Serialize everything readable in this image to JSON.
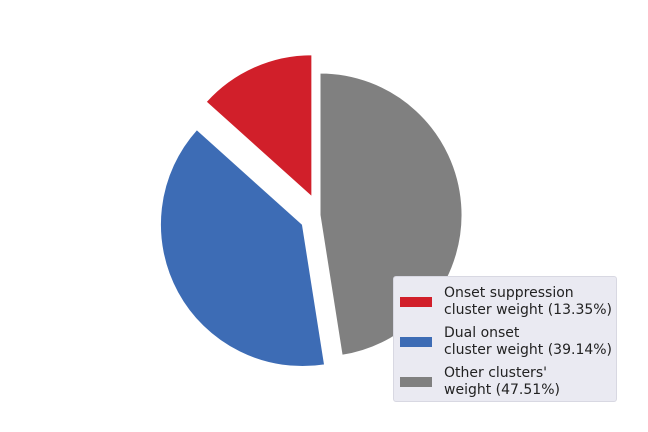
{
  "chart_data": {
    "type": "pie",
    "title": "",
    "slices": [
      {
        "label_lines": [
          "Onset suppression",
          "cluster weight (13.35%)"
        ],
        "value": 13.35,
        "color": "#d11f2a",
        "exploded": true
      },
      {
        "label_lines": [
          "Dual onset",
          "cluster weight (39.14%)"
        ],
        "value": 39.14,
        "color": "#3d6cb5",
        "exploded": true
      },
      {
        "label_lines": [
          "Other clusters'",
          "weight (47.51%)"
        ],
        "value": 47.51,
        "color": "#808080",
        "exploded": false
      }
    ],
    "start_angle_deg": 90,
    "direction": "counterclockwise",
    "legend": {
      "position": "lower-right"
    }
  }
}
